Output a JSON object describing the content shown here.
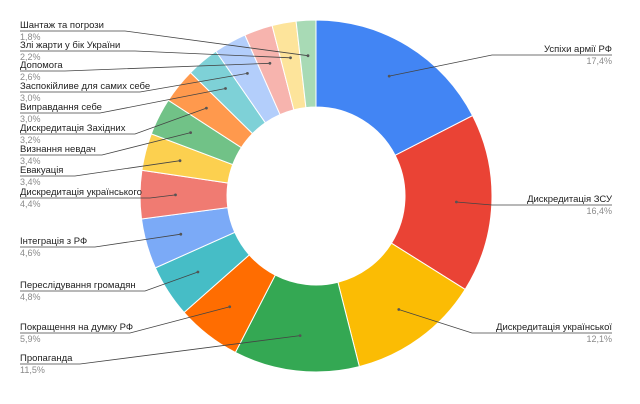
{
  "chart_data": {
    "type": "pie",
    "donut": true,
    "title": "",
    "slices": [
      {
        "label": "Успіхи армії РФ",
        "value": 17.4,
        "value_text": "17,4%",
        "color": "#4285f4"
      },
      {
        "label": "Дискредитація ЗСУ",
        "value": 16.4,
        "value_text": "16,4%",
        "color": "#ea4335"
      },
      {
        "label": "Дискредитація української",
        "value": 12.1,
        "value_text": "12,1%",
        "color": "#fbbc04"
      },
      {
        "label": "Пропаганда",
        "value": 11.5,
        "value_text": "11,5%",
        "color": "#34a853"
      },
      {
        "label": "Покращення на думку РФ",
        "value": 5.9,
        "value_text": "5,9%",
        "color": "#ff6d01"
      },
      {
        "label": "Переслідування громадян",
        "value": 4.8,
        "value_text": "4,8%",
        "color": "#46bdc6"
      },
      {
        "label": "Інтеграція з РФ",
        "value": 4.6,
        "value_text": "4,6%",
        "color": "#7baaf7"
      },
      {
        "label": "Дискредитація українського",
        "value": 4.4,
        "value_text": "4,4%",
        "color": "#f07b72"
      },
      {
        "label": "Евакуація",
        "value": 3.4,
        "value_text": "3,4%",
        "color": "#fcd04f"
      },
      {
        "label": "Визнання невдач",
        "value": 3.4,
        "value_text": "3,4%",
        "color": "#71c287"
      },
      {
        "label": "Дискредитація  Західних",
        "value": 3.2,
        "value_text": "3,2%",
        "color": "#ff994d"
      },
      {
        "label": "Виправдання себе",
        "value": 3.0,
        "value_text": "3,0%",
        "color": "#7ed1d7"
      },
      {
        "label": "Заспокійливе для самих себе",
        "value": 3.0,
        "value_text": "3,0%",
        "color": "#b3cefb"
      },
      {
        "label": "Допомога",
        "value": 2.6,
        "value_text": "2,6%",
        "color": "#f7b4ae"
      },
      {
        "label": "Злі жарти у бік України",
        "value": 2.2,
        "value_text": "2,2%",
        "color": "#fde49b"
      },
      {
        "label": "Шантаж та погрози",
        "value": 1.8,
        "value_text": "1,8%",
        "color": "#a8dab5"
      }
    ],
    "legend": "none",
    "labels_position": "outside-with-leader-lines"
  }
}
